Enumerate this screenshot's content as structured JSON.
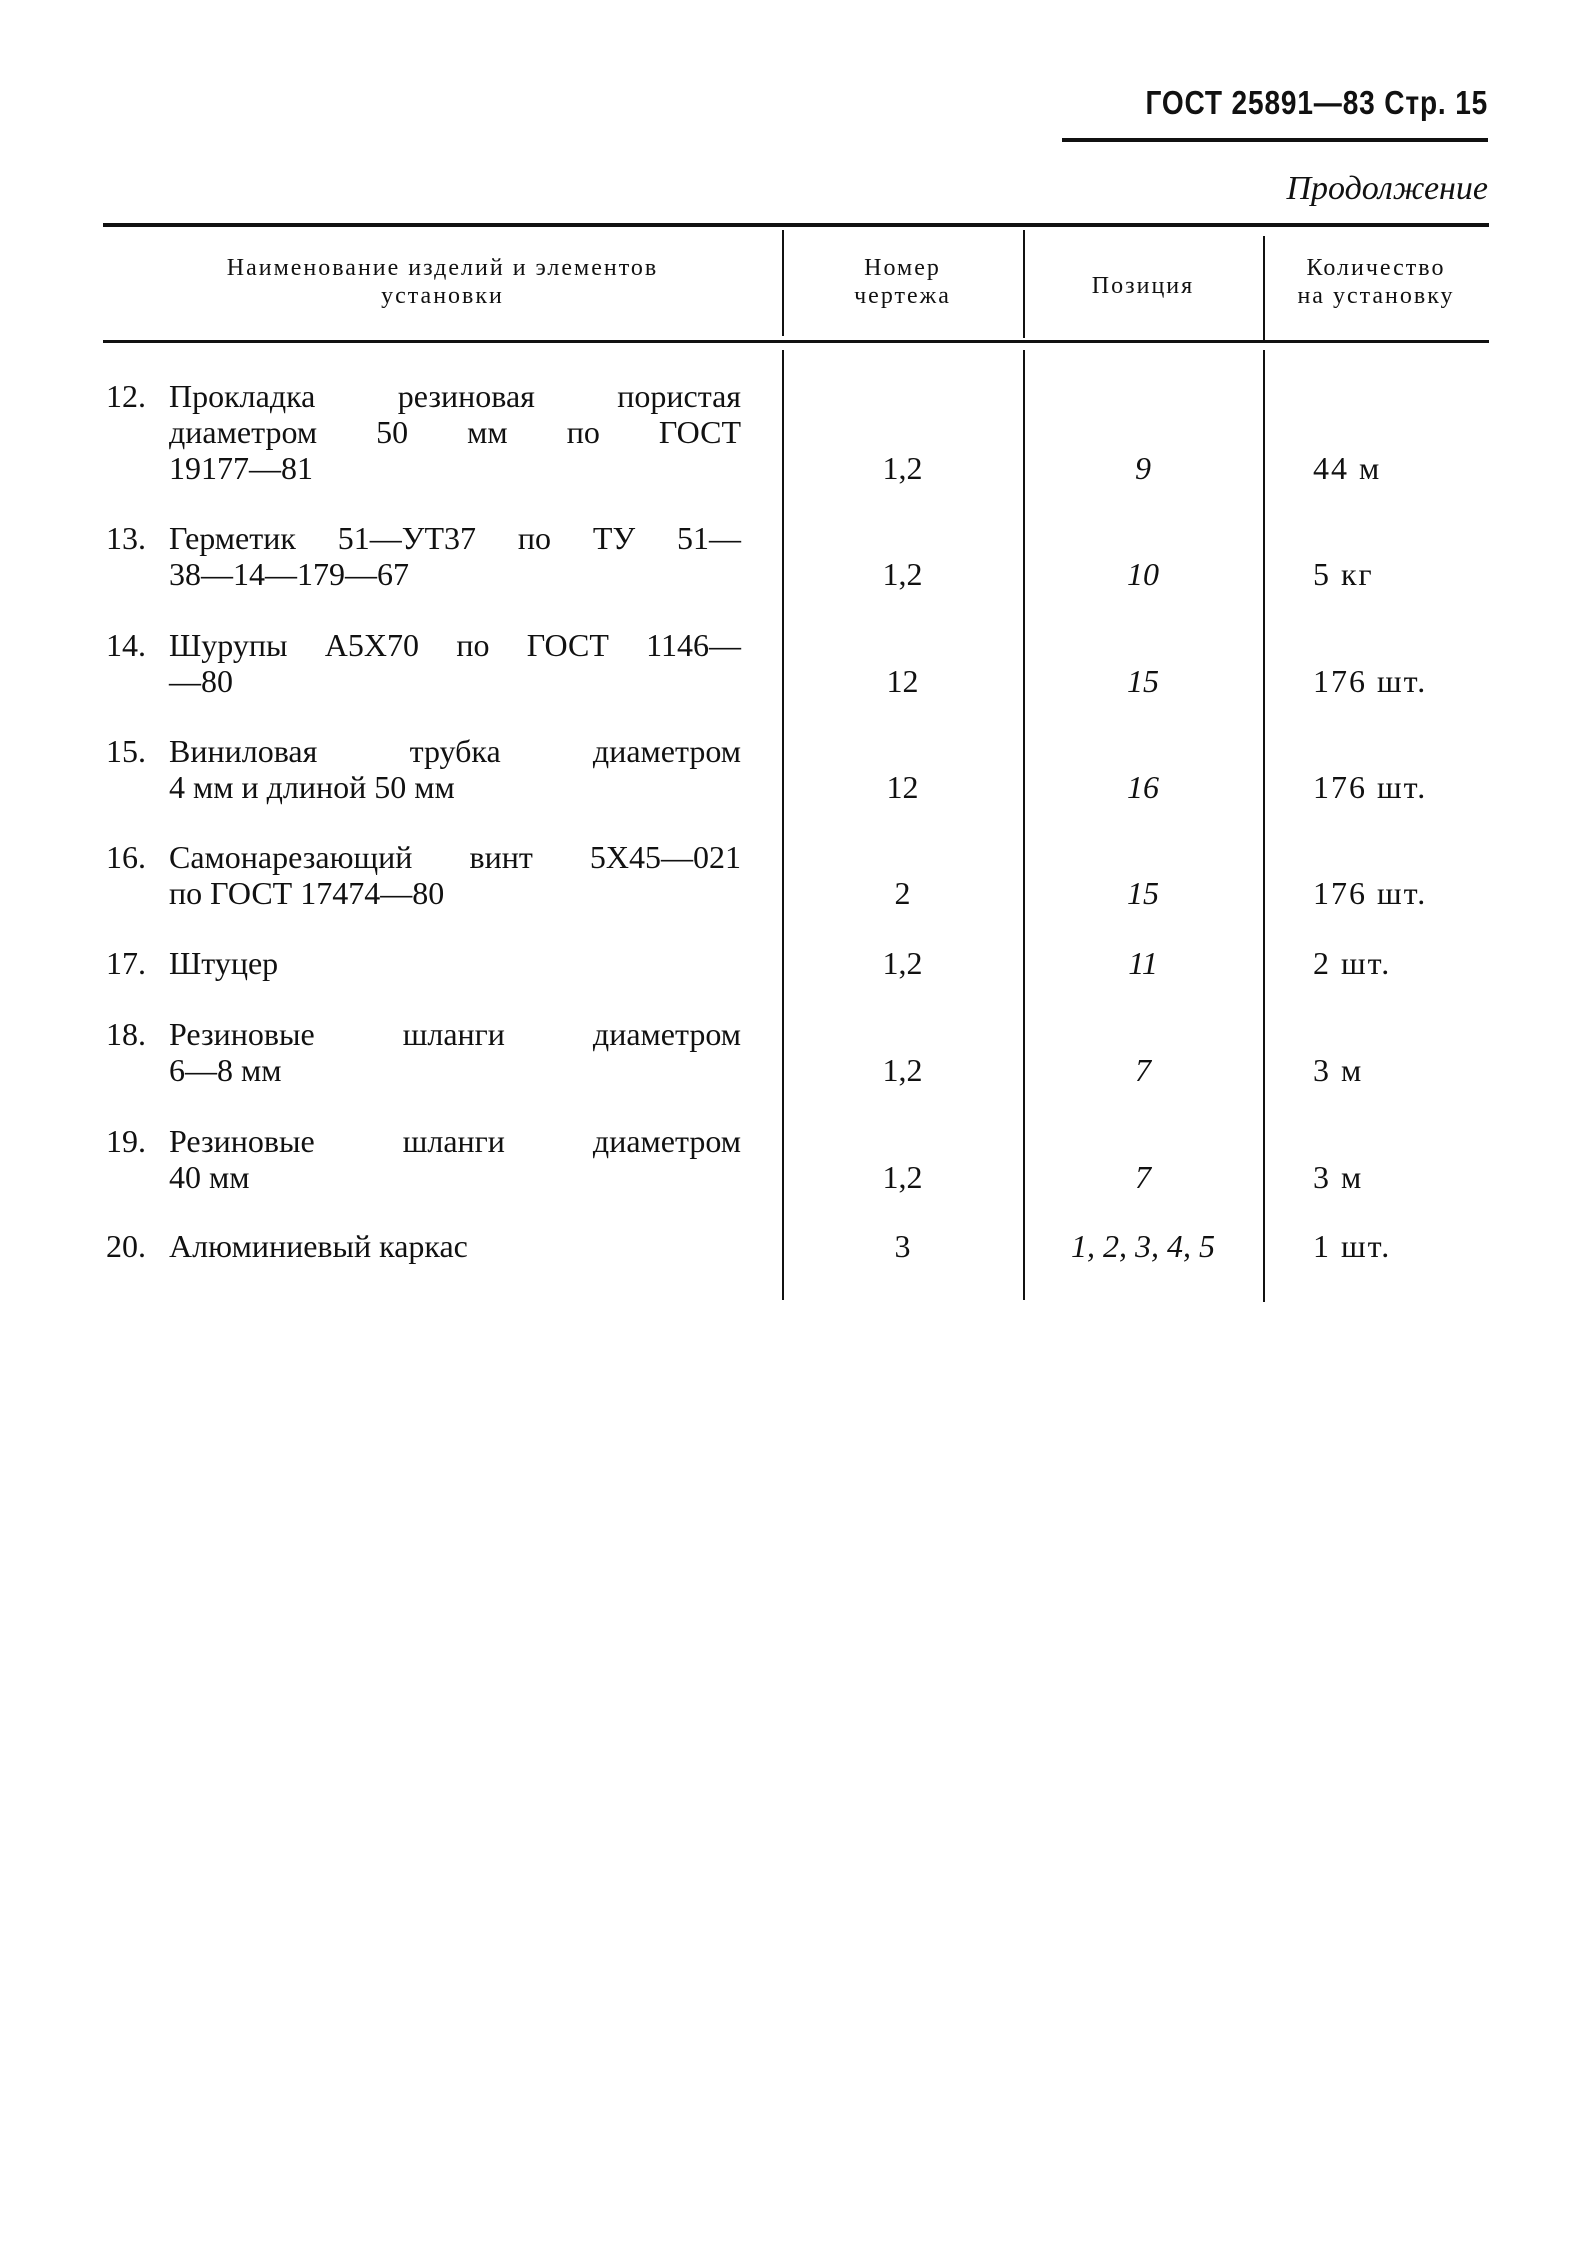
{
  "page_header": "ГОСТ 25891—83 Стр. 15",
  "continuation": "Продолжение",
  "table": {
    "headers": [
      "Наименование изделий и элементов установки",
      "Номер чертежа",
      "Позиция",
      "Количество на установку"
    ],
    "header_lines": [
      [
        "Наименование изделий и элементов",
        "установки"
      ],
      [
        "Номер",
        "чертежа"
      ],
      [
        "Позиция"
      ],
      [
        "Количество",
        "на установку"
      ]
    ],
    "rows": [
      {
        "number": "12.",
        "name_lines": [
          "Прокладка резиновая пористая",
          "диаметром 50 мм по ГОСТ",
          "19177—81"
        ],
        "drawing": "1,2",
        "position": "9",
        "quantity": "44 м"
      },
      {
        "number": "13.",
        "name_lines": [
          "Герметик 51—УТ37 по ТУ 51—",
          "38—14—179—67"
        ],
        "drawing": "1,2",
        "position": "10",
        "quantity": "5 кг"
      },
      {
        "number": "14.",
        "name_lines": [
          "Шурупы А5Х70 по ГОСТ 1146—",
          "—80"
        ],
        "drawing": "12",
        "position": "15",
        "quantity": "176 шт."
      },
      {
        "number": "15.",
        "name_lines": [
          "Виниловая трубка диаметром",
          "4 мм и длиной 50 мм"
        ],
        "drawing": "12",
        "position": "16",
        "quantity": "176 шт."
      },
      {
        "number": "16.",
        "name_lines": [
          "Самонарезающий винт 5Х45—021",
          "по ГОСТ 17474—80"
        ],
        "drawing": "2",
        "position": "15",
        "quantity": "176 шт."
      },
      {
        "number": "17.",
        "name_lines": [
          "Штуцер"
        ],
        "drawing": "1,2",
        "position": "11",
        "quantity": "2 шт."
      },
      {
        "number": "18.",
        "name_lines": [
          "Резиновые шланги диаметром",
          "6—8 мм"
        ],
        "drawing": "1,2",
        "position": "7",
        "quantity": "3 м"
      },
      {
        "number": "19.",
        "name_lines": [
          "Резиновые шланги диаметром",
          "40 мм"
        ],
        "drawing": "1,2",
        "position": "7",
        "quantity": "3 м"
      },
      {
        "number": "20.",
        "name_lines": [
          "Алюминиевый каркас"
        ],
        "drawing": "3",
        "position": "1, 2, 3, 4, 5",
        "quantity": "1 шт."
      }
    ]
  }
}
